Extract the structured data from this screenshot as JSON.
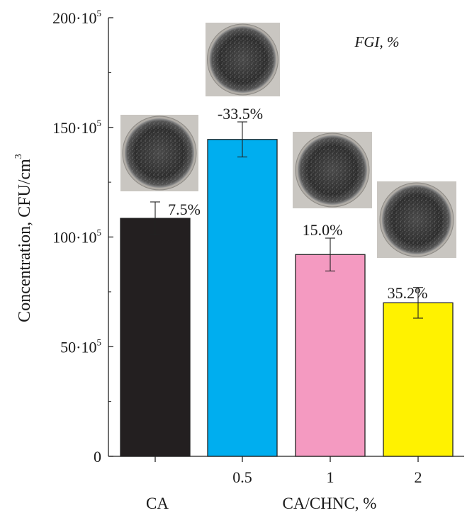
{
  "chart_data": {
    "type": "bar",
    "ylabel_main": "Concentration, CFU/cm",
    "ylabel_sup": "3",
    "xlabel": "CA/CHNC, %",
    "legend_note": "FGI, %",
    "ylim": [
      0,
      200
    ],
    "y_multiplier_base": "10",
    "y_multiplier_exp": "5",
    "y_ticks": [
      {
        "value": 0,
        "mant": "0",
        "exp": ""
      },
      {
        "value": 50,
        "mant": "50·10",
        "exp": "5"
      },
      {
        "value": 100,
        "mant": "100·10",
        "exp": "5"
      },
      {
        "value": 150,
        "mant": "150·10",
        "exp": "5"
      },
      {
        "value": 200,
        "mant": "200·10",
        "exp": "5"
      }
    ],
    "categories": [
      "CA",
      "0.5",
      "1",
      "2"
    ],
    "tick_labels": [
      "",
      "0.5",
      "1",
      "2"
    ],
    "group_label": "CA",
    "values": [
      108.5,
      144.5,
      92,
      70
    ],
    "errors": [
      7.5,
      8,
      7.5,
      7
    ],
    "fgi_labels": [
      "7.5%",
      "-33.5%",
      "15.0%",
      "35.2%"
    ],
    "colors": [
      "#231f20",
      "#00aeef",
      "#f49ac1",
      "#fff200"
    ],
    "grid": false
  }
}
